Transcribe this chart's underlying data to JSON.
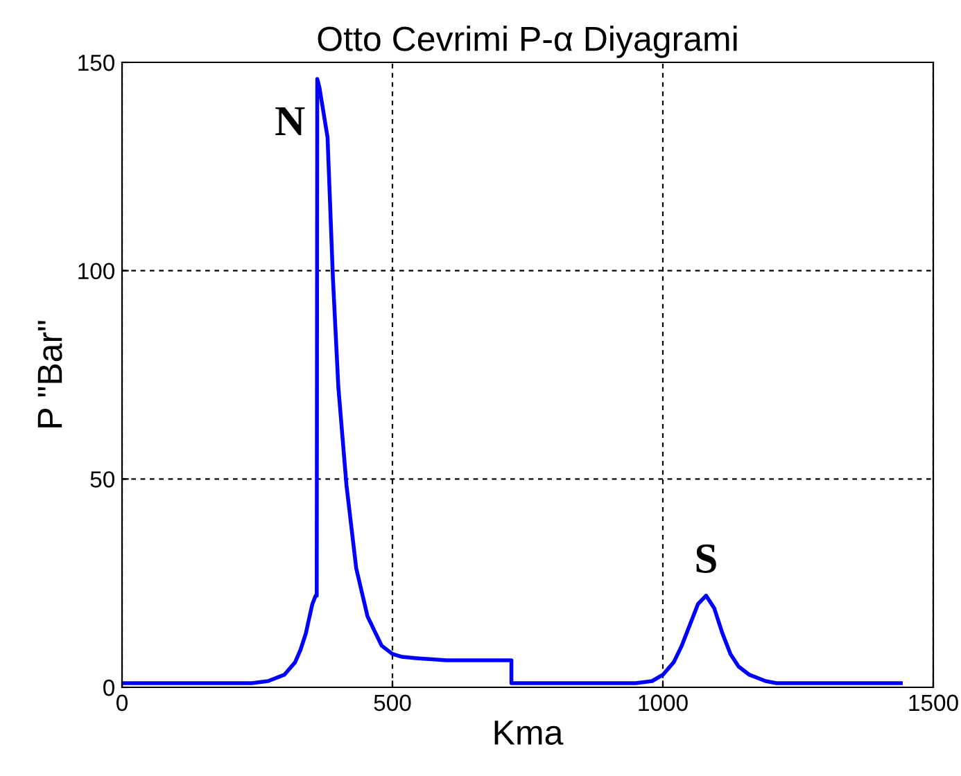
{
  "chart_data": {
    "type": "line",
    "title": "Otto Cevrimi P-α Diyagrami",
    "xlabel": "Kma",
    "ylabel": "P \"Bar\"",
    "series": [
      {
        "color": "#0000ff",
        "x": [
          0,
          240,
          270,
          300,
          320,
          330,
          340,
          345,
          352,
          358,
          360,
          361,
          365,
          370,
          380,
          390,
          400,
          415,
          433,
          454,
          480,
          500,
          518,
          544,
          600,
          720,
          720,
          800,
          950,
          980,
          1000,
          1020,
          1035,
          1050,
          1065,
          1080,
          1095,
          1110,
          1125,
          1140,
          1160,
          1190,
          1210,
          1300,
          1440
        ],
        "values": [
          1,
          1,
          1.5,
          3,
          6,
          9,
          13,
          16,
          20,
          22,
          22,
          146,
          144,
          140,
          132,
          98,
          72,
          48.5,
          28.6,
          17,
          10,
          8,
          7.3,
          7,
          6.5,
          6.5,
          1,
          1,
          1,
          1.5,
          3,
          6,
          10,
          15,
          20,
          22,
          19,
          13,
          8,
          5,
          3,
          1.5,
          1,
          1,
          1
        ]
      }
    ],
    "xlim": [
      0,
      1500
    ],
    "ylim": [
      0,
      150
    ],
    "xticks": [
      0,
      500,
      1000,
      1500
    ],
    "yticks": [
      0,
      50,
      100,
      150
    ],
    "grid": true,
    "line_style": "solid",
    "marker": "none",
    "annotations": [
      "N",
      "S"
    ]
  }
}
